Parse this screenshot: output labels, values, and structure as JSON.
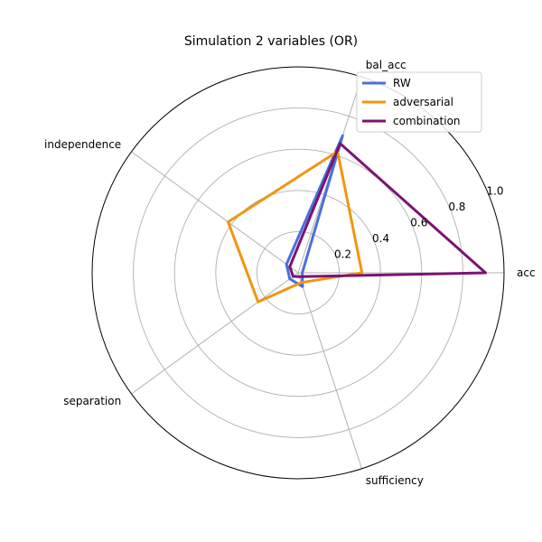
{
  "chart_data": {
    "type": "radar",
    "title": "Simulation 2 variables (OR)",
    "axes": [
      "acc",
      "bal_acc",
      "independence",
      "separation",
      "sufficiency"
    ],
    "rlim": [
      0,
      1.0
    ],
    "rticks": [
      0.2,
      0.4,
      0.6,
      0.8,
      1.0
    ],
    "rtick_labels": [
      "0.2",
      "0.4",
      "0.6",
      "0.8",
      "1.0"
    ],
    "grid": true,
    "legend_position": "top-right",
    "series": [
      {
        "name": "RW",
        "color": "#4a6fdc",
        "values": [
          0.02,
          0.7,
          0.07,
          0.05,
          0.07
        ]
      },
      {
        "name": "adversarial",
        "color": "#f0960f",
        "values": [
          0.31,
          0.62,
          0.42,
          0.24,
          0.05
        ]
      },
      {
        "name": "combination",
        "color": "#7a1472",
        "values": [
          0.91,
          0.66,
          0.05,
          0.03,
          0.02
        ]
      }
    ]
  }
}
